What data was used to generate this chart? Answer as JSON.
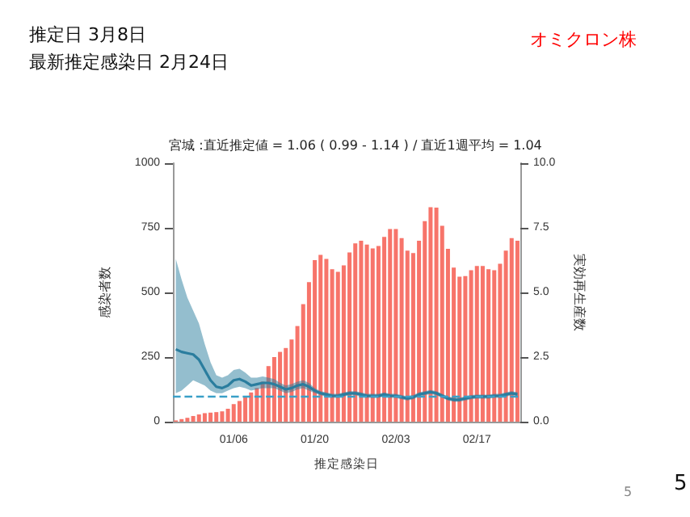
{
  "chart_data": {
    "type": "bar",
    "title": "宮城 :直近推定値 = 1.06 ( 0.99 - 1.14 ) / 直近1週平均 = 1.04",
    "xlabel": "推定感染日",
    "ylabel": "感染者数",
    "y2label": "実効再生産数",
    "annotations": [
      "推定日  3月8日",
      "最新推定感染日  2月24日",
      "オミクロン株",
      "5",
      "5"
    ],
    "categories": [
      null,
      null,
      null,
      null,
      null,
      null,
      null,
      null,
      null,
      null,
      "01/06",
      null,
      null,
      null,
      null,
      null,
      null,
      null,
      null,
      null,
      null,
      null,
      null,
      null,
      "01/20",
      null,
      null,
      null,
      null,
      null,
      null,
      null,
      null,
      null,
      null,
      null,
      null,
      null,
      "02/03",
      null,
      null,
      null,
      null,
      null,
      null,
      null,
      null,
      null,
      null,
      null,
      null,
      null,
      "02/17",
      null,
      null,
      null,
      null,
      null,
      null,
      null
    ],
    "series": [
      {
        "color": "#f7746a",
        "values": [
          5,
          10,
          15,
          22,
          28,
          33,
          35,
          37,
          40,
          50,
          68,
          80,
          95,
          113,
          130,
          155,
          215,
          250,
          270,
          285,
          318,
          370,
          455,
          540,
          625,
          645,
          630,
          590,
          580,
          605,
          655,
          690,
          700,
          685,
          670,
          680,
          715,
          745,
          745,
          710,
          662,
          652,
          700,
          776,
          830,
          828,
          758,
          669,
          596,
          561,
          563,
          586,
          602,
          602,
          590,
          586,
          611,
          662,
          710,
          700
        ]
      },
      {
        "type": "line",
        "axis": "y2",
        "color": "#2a7d9e",
        "values": [
          2.8,
          2.7,
          2.65,
          2.6,
          2.4,
          2.0,
          1.6,
          1.35,
          1.3,
          1.4,
          1.6,
          1.65,
          1.55,
          1.4,
          1.45,
          1.5,
          1.5,
          1.45,
          1.35,
          1.25,
          1.3,
          1.4,
          1.45,
          1.35,
          1.2,
          1.1,
          1.05,
          1.0,
          1.0,
          1.05,
          1.1,
          1.1,
          1.05,
          1.0,
          1.0,
          1.0,
          1.05,
          1.0,
          1.0,
          0.95,
          0.9,
          0.95,
          1.05,
          1.1,
          1.15,
          1.1,
          1.0,
          0.9,
          0.85,
          0.85,
          0.9,
          0.95,
          0.97,
          0.97,
          0.97,
          1.0,
          1.0,
          1.05,
          1.1,
          1.06
        ],
        "lower": [
          1.1,
          1.2,
          1.4,
          1.6,
          1.5,
          1.4,
          1.2,
          1.1,
          1.1,
          1.2,
          1.3,
          1.35,
          1.3,
          1.2,
          1.25,
          1.3,
          1.3,
          1.3,
          1.2,
          1.1,
          1.15,
          1.25,
          1.3,
          1.2,
          1.1,
          1.02,
          0.97,
          0.92,
          0.92,
          0.97,
          1.02,
          1.02,
          0.97,
          0.92,
          0.92,
          0.92,
          0.97,
          0.92,
          0.92,
          0.87,
          0.82,
          0.87,
          0.97,
          1.02,
          1.07,
          1.02,
          0.92,
          0.82,
          0.77,
          0.77,
          0.82,
          0.87,
          0.89,
          0.89,
          0.89,
          0.92,
          0.92,
          0.97,
          1.02,
          0.99
        ],
        "upper": [
          6.3,
          5.5,
          4.8,
          4.3,
          3.8,
          3.0,
          2.3,
          1.8,
          1.7,
          1.8,
          2.0,
          2.05,
          1.9,
          1.7,
          1.7,
          1.75,
          1.7,
          1.65,
          1.5,
          1.4,
          1.45,
          1.55,
          1.6,
          1.5,
          1.3,
          1.18,
          1.13,
          1.08,
          1.08,
          1.13,
          1.18,
          1.18,
          1.13,
          1.08,
          1.08,
          1.08,
          1.13,
          1.08,
          1.08,
          1.03,
          0.98,
          1.03,
          1.13,
          1.18,
          1.23,
          1.18,
          1.08,
          0.98,
          0.93,
          0.93,
          0.98,
          1.03,
          1.05,
          1.05,
          1.05,
          1.08,
          1.08,
          1.13,
          1.18,
          1.14
        ]
      }
    ],
    "ylim": [
      0,
      1000
    ],
    "yticks": [
      0,
      250,
      500,
      750,
      1000
    ],
    "y2lim": [
      0,
      10
    ],
    "y2ticks": [
      {
        "value": 0,
        "label": "0.0"
      },
      {
        "value": 2.5,
        "label": "2.5"
      },
      {
        "value": 5,
        "label": "5.0"
      },
      {
        "value": 7.5,
        "label": "7.5"
      },
      {
        "value": 10,
        "label": "10.0"
      }
    ],
    "ref_lines": [
      {
        "axis": "y2",
        "value": 1,
        "color": "#3aa0c8",
        "line_style": "dashed"
      }
    ],
    "grid": false
  }
}
